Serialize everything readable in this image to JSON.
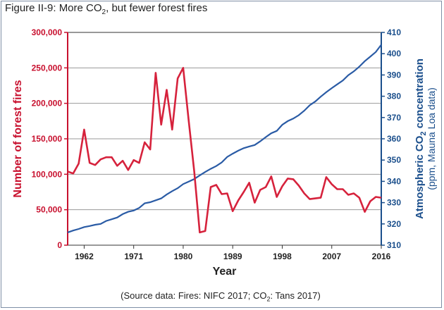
{
  "figure": {
    "title_prefix": "Figure II-9: More CO",
    "title_sub": "2",
    "title_suffix": ", but fewer forest fires",
    "source_prefix": "(Source data: Fires: NIFC 2017; CO",
    "source_sub": "2",
    "source_suffix": ": Tans 2017)"
  },
  "chart_data": {
    "type": "line",
    "xlabel": "Year",
    "ylabel_left": "Number of forest fires",
    "ylabel_right_line1_prefix": "Atmospheric CO",
    "ylabel_right_line1_sub": "2",
    "ylabel_right_line1_suffix": " concentration",
    "ylabel_right_line2": "(ppm, Mauna Loa data)",
    "xlim": [
      1959,
      2016
    ],
    "x_ticks": [
      1962,
      1971,
      1980,
      1989,
      1998,
      2007,
      2016
    ],
    "x_tick_labels": [
      "1962",
      "1971",
      "1980",
      "1989",
      "1998",
      "2007",
      "2016"
    ],
    "ylim_left": [
      0,
      300000
    ],
    "y_ticks_left": [
      "0",
      "50,000",
      "100,000",
      "150,000",
      "200,000",
      "250,000",
      "300,000"
    ],
    "ylim_right": [
      310,
      410
    ],
    "y_ticks_right": [
      "310",
      "320",
      "330",
      "340",
      "350",
      "360",
      "370",
      "380",
      "390",
      "400",
      "410"
    ],
    "grid": "horizontal",
    "colors": {
      "fires": "#d6223c",
      "co2": "#2a5ba5",
      "left_axis": "#c8102e",
      "right_axis": "#1b4f8c"
    },
    "series": [
      {
        "axis": "left",
        "x": [
          1959,
          1960,
          1961,
          1962,
          1963,
          1964,
          1965,
          1966,
          1967,
          1968,
          1969,
          1970,
          1971,
          1972,
          1973,
          1974,
          1975,
          1976,
          1977,
          1978,
          1979,
          1980,
          1981,
          1982,
          1983,
          1984,
          1985,
          1986,
          1987,
          1988,
          1989,
          1990,
          1991,
          1992,
          1993,
          1994,
          1995,
          1996,
          1997,
          1998,
          1999,
          2000,
          2001,
          2002,
          2003,
          2004,
          2005,
          2006,
          2007,
          2008,
          2009,
          2010,
          2011,
          2012,
          2013,
          2014,
          2015,
          2016
        ],
        "values": [
          104000,
          101000,
          115000,
          163000,
          116000,
          113000,
          121000,
          124000,
          124000,
          112000,
          119000,
          106000,
          120000,
          116000,
          145000,
          135000,
          243000,
          170000,
          219000,
          163000,
          235000,
          250000,
          175000,
          104000,
          18000,
          20000,
          82000,
          85000,
          72000,
          73000,
          48000,
          63000,
          75000,
          88000,
          60000,
          78000,
          82000,
          97000,
          68000,
          83000,
          94000,
          93000,
          84000,
          73000,
          65000,
          66000,
          67000,
          96000,
          86000,
          79000,
          79000,
          71000,
          73000,
          67000,
          47000,
          62000,
          68000,
          67000
        ]
      },
      {
        "axis": "right",
        "x": [
          1959,
          1960,
          1961,
          1962,
          1963,
          1964,
          1965,
          1966,
          1967,
          1968,
          1969,
          1970,
          1971,
          1972,
          1973,
          1974,
          1975,
          1976,
          1977,
          1978,
          1979,
          1980,
          1981,
          1982,
          1983,
          1984,
          1985,
          1986,
          1987,
          1988,
          1989,
          1990,
          1991,
          1992,
          1993,
          1994,
          1995,
          1996,
          1997,
          1998,
          1999,
          2000,
          2001,
          2002,
          2003,
          2004,
          2005,
          2006,
          2007,
          2008,
          2009,
          2010,
          2011,
          2012,
          2013,
          2014,
          2015,
          2016
        ],
        "values": [
          316.0,
          316.9,
          317.6,
          318.5,
          319.0,
          319.6,
          320.0,
          321.4,
          322.2,
          323.0,
          324.6,
          325.7,
          326.3,
          327.5,
          329.7,
          330.2,
          331.1,
          332.0,
          333.8,
          335.4,
          336.8,
          338.7,
          339.9,
          341.1,
          342.8,
          344.4,
          345.9,
          347.2,
          348.9,
          351.5,
          353.0,
          354.4,
          355.6,
          356.4,
          357.1,
          358.8,
          360.8,
          362.6,
          363.7,
          366.6,
          368.3,
          369.5,
          371.1,
          373.2,
          375.8,
          377.5,
          379.8,
          381.9,
          383.8,
          385.6,
          387.4,
          389.9,
          391.7,
          393.9,
          396.5,
          398.6,
          400.8,
          404.2
        ]
      }
    ]
  }
}
